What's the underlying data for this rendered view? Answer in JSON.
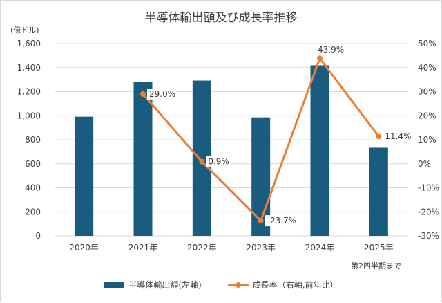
{
  "chart_data": {
    "type": "bar",
    "title": "半導体輸出額及び成長率推移",
    "unit_label": "(億ドル)",
    "categories": [
      "2020年",
      "2021年",
      "2022年",
      "2023年",
      "2024年",
      "2025年"
    ],
    "series": [
      {
        "name": "半導体輸出額(左軸)",
        "type": "bar",
        "axis": "left",
        "color": "#1a5c80",
        "values": [
          992,
          1280,
          1292,
          986,
          1419,
          734
        ]
      },
      {
        "name": "成長率（右軸,前年比）",
        "type": "line",
        "axis": "right",
        "color": "#ed7d31",
        "points": [
          {
            "category": "2021年",
            "value": 29.0,
            "label": "29.0%"
          },
          {
            "category": "2022年",
            "value": 0.9,
            "label": "0.9%"
          },
          {
            "category": "2023年",
            "value": -23.7,
            "label": "-23.7%"
          },
          {
            "category": "2024年",
            "value": 43.9,
            "label": "43.9%"
          },
          {
            "category": "2025年",
            "value": 11.4,
            "label": "11.4%"
          }
        ]
      }
    ],
    "y_left": {
      "min": 0,
      "max": 1600,
      "ticks": [
        0,
        200,
        400,
        600,
        800,
        1000,
        1200,
        1400,
        1600
      ],
      "tick_labels": [
        "0",
        "200",
        "400",
        "600",
        "800",
        "1,000",
        "1,200",
        "1,400",
        "1,600"
      ]
    },
    "y_right": {
      "min": -30,
      "max": 50,
      "tick_labels": [
        "-30%",
        "-20%",
        "-10%",
        "0%",
        "10%",
        "20%",
        "30%",
        "40%",
        "50%"
      ]
    },
    "grid": true,
    "legend_position": "bottom",
    "note": "第2四半期まで"
  }
}
